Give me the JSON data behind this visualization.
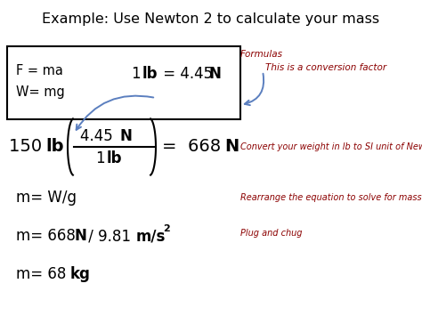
{
  "title": "Example: Use Newton 2 to calculate your mass",
  "bg_color": "#ffffff",
  "black": "#000000",
  "dark_red": "#8B0000",
  "blue_arrow": "#5B7FBF",
  "formulas_label": "Formulas",
  "conversion_label": "This is a conversion factor",
  "line2_note": "Convert your weight in lb to SI unit of Newtons",
  "line3_note": "Rearrange the equation to solve for mass",
  "line4_note": "Plug and chug"
}
